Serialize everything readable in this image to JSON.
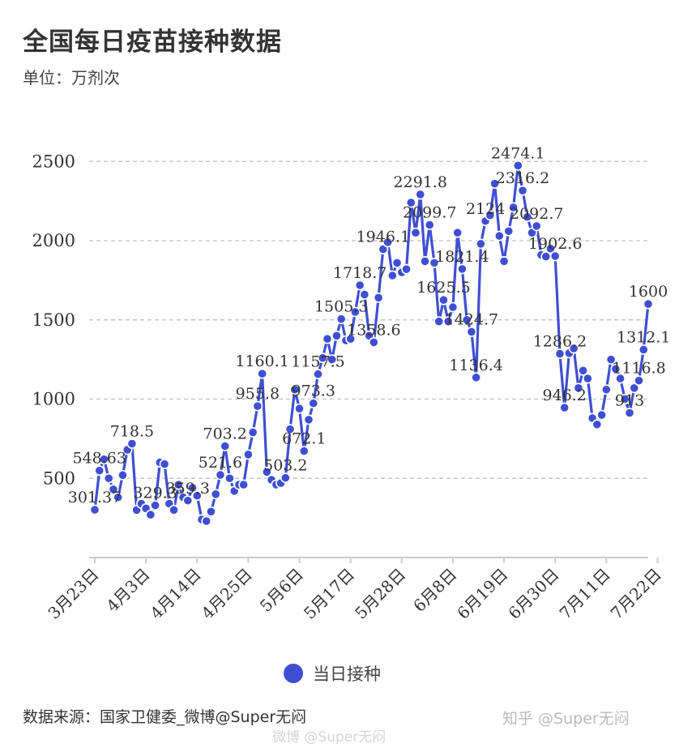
{
  "header": {
    "title": "全国每日疫苗接种数据",
    "unit": "单位：万剂次"
  },
  "legend": {
    "label": "当日接种"
  },
  "footer": {
    "source": "数据来源：国家卫健委_微博@Super无闷",
    "watermark_right": "知乎 @Super无闷",
    "watermark_center": "微博 @Super无闷"
  },
  "colors": {
    "series": "#3f4fd3",
    "grid": "#c8c8c8",
    "axis": "#cccccc"
  },
  "chart_data": {
    "type": "line",
    "title": "全国每日疫苗接种数据",
    "ylabel": "单位：万剂次",
    "xlabel": "",
    "ylim": [
      0,
      2700
    ],
    "yticks": [
      500,
      1000,
      1500,
      2000,
      2500
    ],
    "grid": true,
    "legend_position": "bottom-center",
    "x_tick_labels": [
      {
        "label": "3月23日",
        "index": 0
      },
      {
        "label": "4月3日",
        "index": 11
      },
      {
        "label": "4月14日",
        "index": 22
      },
      {
        "label": "4月25日",
        "index": 33
      },
      {
        "label": "5月6日",
        "index": 44
      },
      {
        "label": "5月17日",
        "index": 55
      },
      {
        "label": "5月28日",
        "index": 66
      },
      {
        "label": "6月8日",
        "index": 77
      },
      {
        "label": "6月19日",
        "index": 88
      },
      {
        "label": "6月30日",
        "index": 99
      },
      {
        "label": "7月11日",
        "index": 110
      },
      {
        "label": "7月22日",
        "index": 121
      }
    ],
    "series": [
      {
        "name": "当日接种",
        "values": [
          301.37,
          548.63,
          620,
          500,
          430,
          380,
          520,
          680,
          718.5,
          300,
          340,
          310,
          270,
          329.3,
          600,
          590,
          340,
          300,
          459.3,
          380,
          359.3,
          440,
          390,
          240,
          230,
          290,
          400,
          521.6,
          703.2,
          500,
          420,
          460,
          460,
          650,
          790,
          955.8,
          1160.1,
          540,
          490,
          460,
          470,
          503.2,
          810,
          1060,
          940,
          672.1,
          870,
          973.3,
          1157.5,
          1260,
          1380,
          1250,
          1400,
          1505.3,
          1370,
          1380,
          1550,
          1718.7,
          1660,
          1400,
          1358.6,
          1640,
          1946.1,
          1990,
          1780,
          1860,
          1800,
          1820,
          2240,
          2050,
          2291.8,
          1870,
          2099.7,
          1860,
          1490,
          1625.5,
          1490,
          1580,
          2050,
          1821.4,
          1500,
          1424.7,
          1136.4,
          1980,
          2124,
          2160,
          2360,
          2030,
          1870,
          2060,
          2210,
          2474.1,
          2316.2,
          2150,
          2050,
          2092.7,
          1910,
          1900,
          1950,
          1902.6,
          1286.2,
          946.2,
          1290,
          1320,
          1070,
          1180,
          1130,
          880,
          840,
          900,
          1060,
          1250,
          1190,
          1130,
          1000,
          913,
          1070,
          1116.8,
          1312.1,
          1600
        ]
      }
    ],
    "data_labels": [
      {
        "index": 0,
        "text": "301.37"
      },
      {
        "index": 1,
        "text": "548.63"
      },
      {
        "index": 8,
        "text": "718.5"
      },
      {
        "index": 13,
        "text": "329.3"
      },
      {
        "index": 20,
        "text": "359.3"
      },
      {
        "index": 27,
        "text": "521.6"
      },
      {
        "index": 28,
        "text": "703.2"
      },
      {
        "index": 35,
        "text": "955.8"
      },
      {
        "index": 36,
        "text": "1160.1"
      },
      {
        "index": 41,
        "text": "503.2"
      },
      {
        "index": 45,
        "text": "672.1"
      },
      {
        "index": 47,
        "text": "973.3"
      },
      {
        "index": 48,
        "text": "1157.5"
      },
      {
        "index": 53,
        "text": "1505.3"
      },
      {
        "index": 57,
        "text": "1718.7"
      },
      {
        "index": 60,
        "text": "1358.6"
      },
      {
        "index": 62,
        "text": "1946.1"
      },
      {
        "index": 70,
        "text": "2291.8"
      },
      {
        "index": 72,
        "text": "2099.7"
      },
      {
        "index": 75,
        "text": "1625.5"
      },
      {
        "index": 79,
        "text": "1821.4"
      },
      {
        "index": 81,
        "text": "1424.7"
      },
      {
        "index": 82,
        "text": "1136.4"
      },
      {
        "index": 84,
        "text": "2124"
      },
      {
        "index": 91,
        "text": "2474.1"
      },
      {
        "index": 92,
        "text": "2316.2"
      },
      {
        "index": 95,
        "text": "2092.7"
      },
      {
        "index": 99,
        "text": "1902.6"
      },
      {
        "index": 100,
        "text": "1286.2"
      },
      {
        "index": 101,
        "text": "946.2"
      },
      {
        "index": 115,
        "text": "913"
      },
      {
        "index": 117,
        "text": "1116.8"
      },
      {
        "index": 118,
        "text": "1312.1"
      },
      {
        "index": 119,
        "text": "1600"
      }
    ]
  }
}
